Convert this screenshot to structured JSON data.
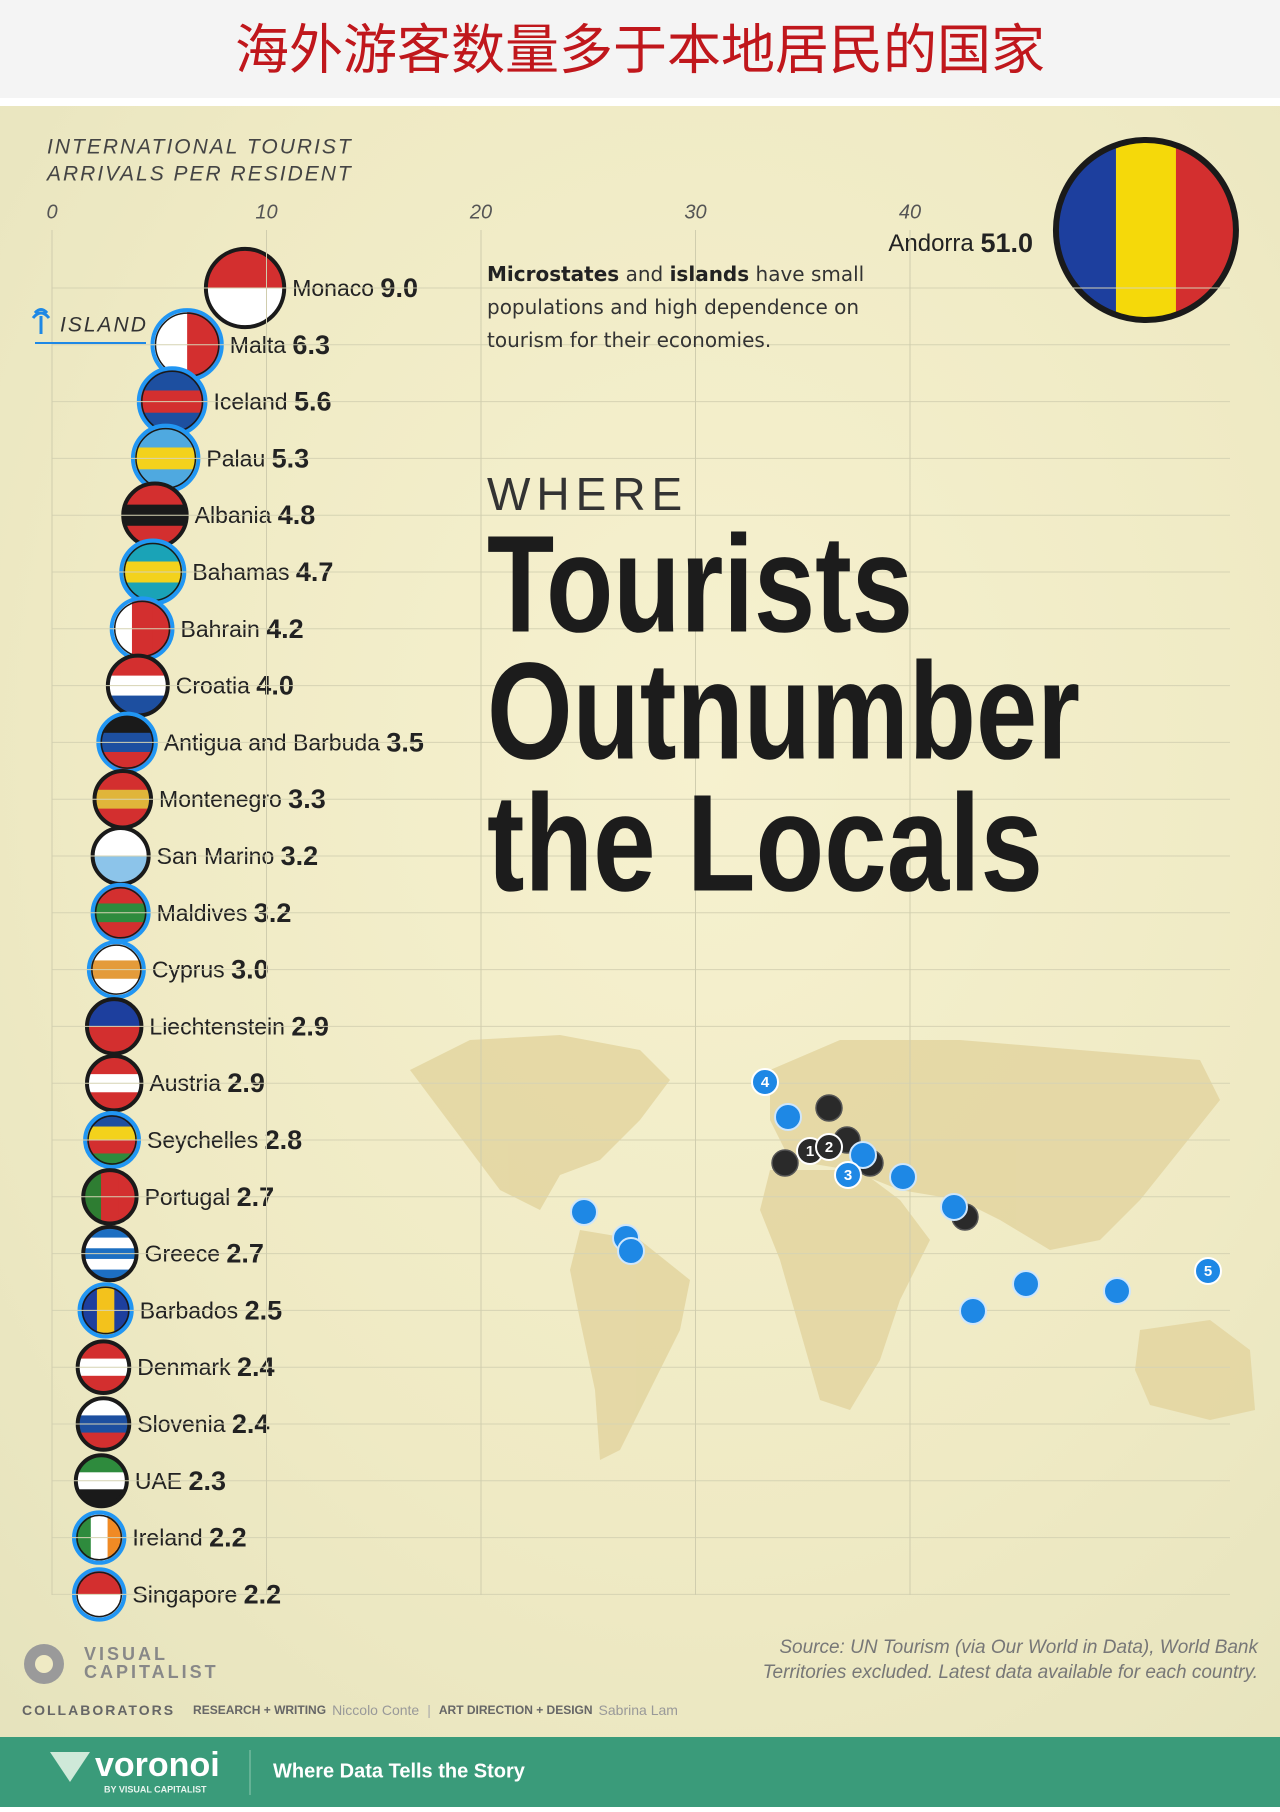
{
  "header": {
    "title": "海外游客数量多于本地居民的国家"
  },
  "chart_data": {
    "type": "dot",
    "x_label": [
      "INTERNATIONAL TOURIST",
      "ARRIVALS PER RESIDENT"
    ],
    "xlim": [
      0,
      55
    ],
    "xticks": [
      0,
      10,
      20,
      30,
      40
    ],
    "grid": true,
    "categories": [
      "Andorra",
      "Monaco",
      "Malta",
      "Iceland",
      "Palau",
      "Albania",
      "Bahamas",
      "Bahrain",
      "Croatia",
      "Antigua and Barbuda",
      "Montenegro",
      "San Marino",
      "Maldives",
      "Cyprus",
      "Liechtenstein",
      "Austria",
      "Seychelles",
      "Portugal",
      "Greece",
      "Barbados",
      "Denmark",
      "Slovenia",
      "UAE",
      "Ireland",
      "Singapore"
    ],
    "values": [
      51.0,
      9.0,
      6.3,
      5.6,
      5.3,
      4.8,
      4.7,
      4.2,
      4.0,
      3.5,
      3.3,
      3.2,
      3.2,
      3.0,
      2.9,
      2.9,
      2.8,
      2.7,
      2.7,
      2.5,
      2.4,
      2.4,
      2.3,
      2.2,
      2.2
    ],
    "value_labels": [
      "51.0",
      "9.0",
      "6.3",
      "5.6",
      "5.3",
      "4.8",
      "4.7",
      "4.2",
      "4.0",
      "3.5",
      "3.3",
      "3.2",
      "3.2",
      "3.0",
      "2.9",
      "2.9",
      "2.8",
      "2.7",
      "2.7",
      "2.5",
      "2.4",
      "2.4",
      "2.3",
      "2.2",
      "2.2"
    ],
    "ring_colors": [
      "#1a1a1a",
      "#1a1a1a",
      "#2196f3",
      "#2196f3",
      "#2196f3",
      "#1a1a1a",
      "#2196f3",
      "#2196f3",
      "#1a1a1a",
      "#2196f3",
      "#1a1a1a",
      "#1a1a1a",
      "#2196f3",
      "#2196f3",
      "#1a1a1a",
      "#1a1a1a",
      "#2196f3",
      "#1a1a1a",
      "#1a1a1a",
      "#2196f3",
      "#1a1a1a",
      "#1a1a1a",
      "#1a1a1a",
      "#2196f3",
      "#2196f3"
    ],
    "legend": "ISLAND",
    "annotation": [
      "Microstates",
      "and",
      "islands",
      "have small populations and high dependence on tourism for their economies."
    ],
    "title": {
      "kicker": "WHERE",
      "lines": [
        "Tourists",
        "Outnumber",
        "the Locals"
      ]
    },
    "map_labels": [
      "1",
      "2",
      "3",
      "4",
      "5"
    ]
  },
  "source": [
    "Source: UN Tourism (via Our World in Data), World Bank",
    "Territories excluded. Latest data available for each country."
  ],
  "credits": {
    "logo": [
      "VISUAL",
      "CAPITALIST"
    ],
    "collaborators": "COLLABORATORS",
    "role_1": "RESEARCH + WRITING",
    "name_1": "Niccolo Conte",
    "role_2": "ART DIRECTION + DESIGN",
    "name_2": "Sabrina Lam"
  },
  "footer": {
    "brand": "voronoi",
    "brand_sub": "BY VISUAL CAPITALIST",
    "tagline": "Where Data Tells the Story"
  }
}
